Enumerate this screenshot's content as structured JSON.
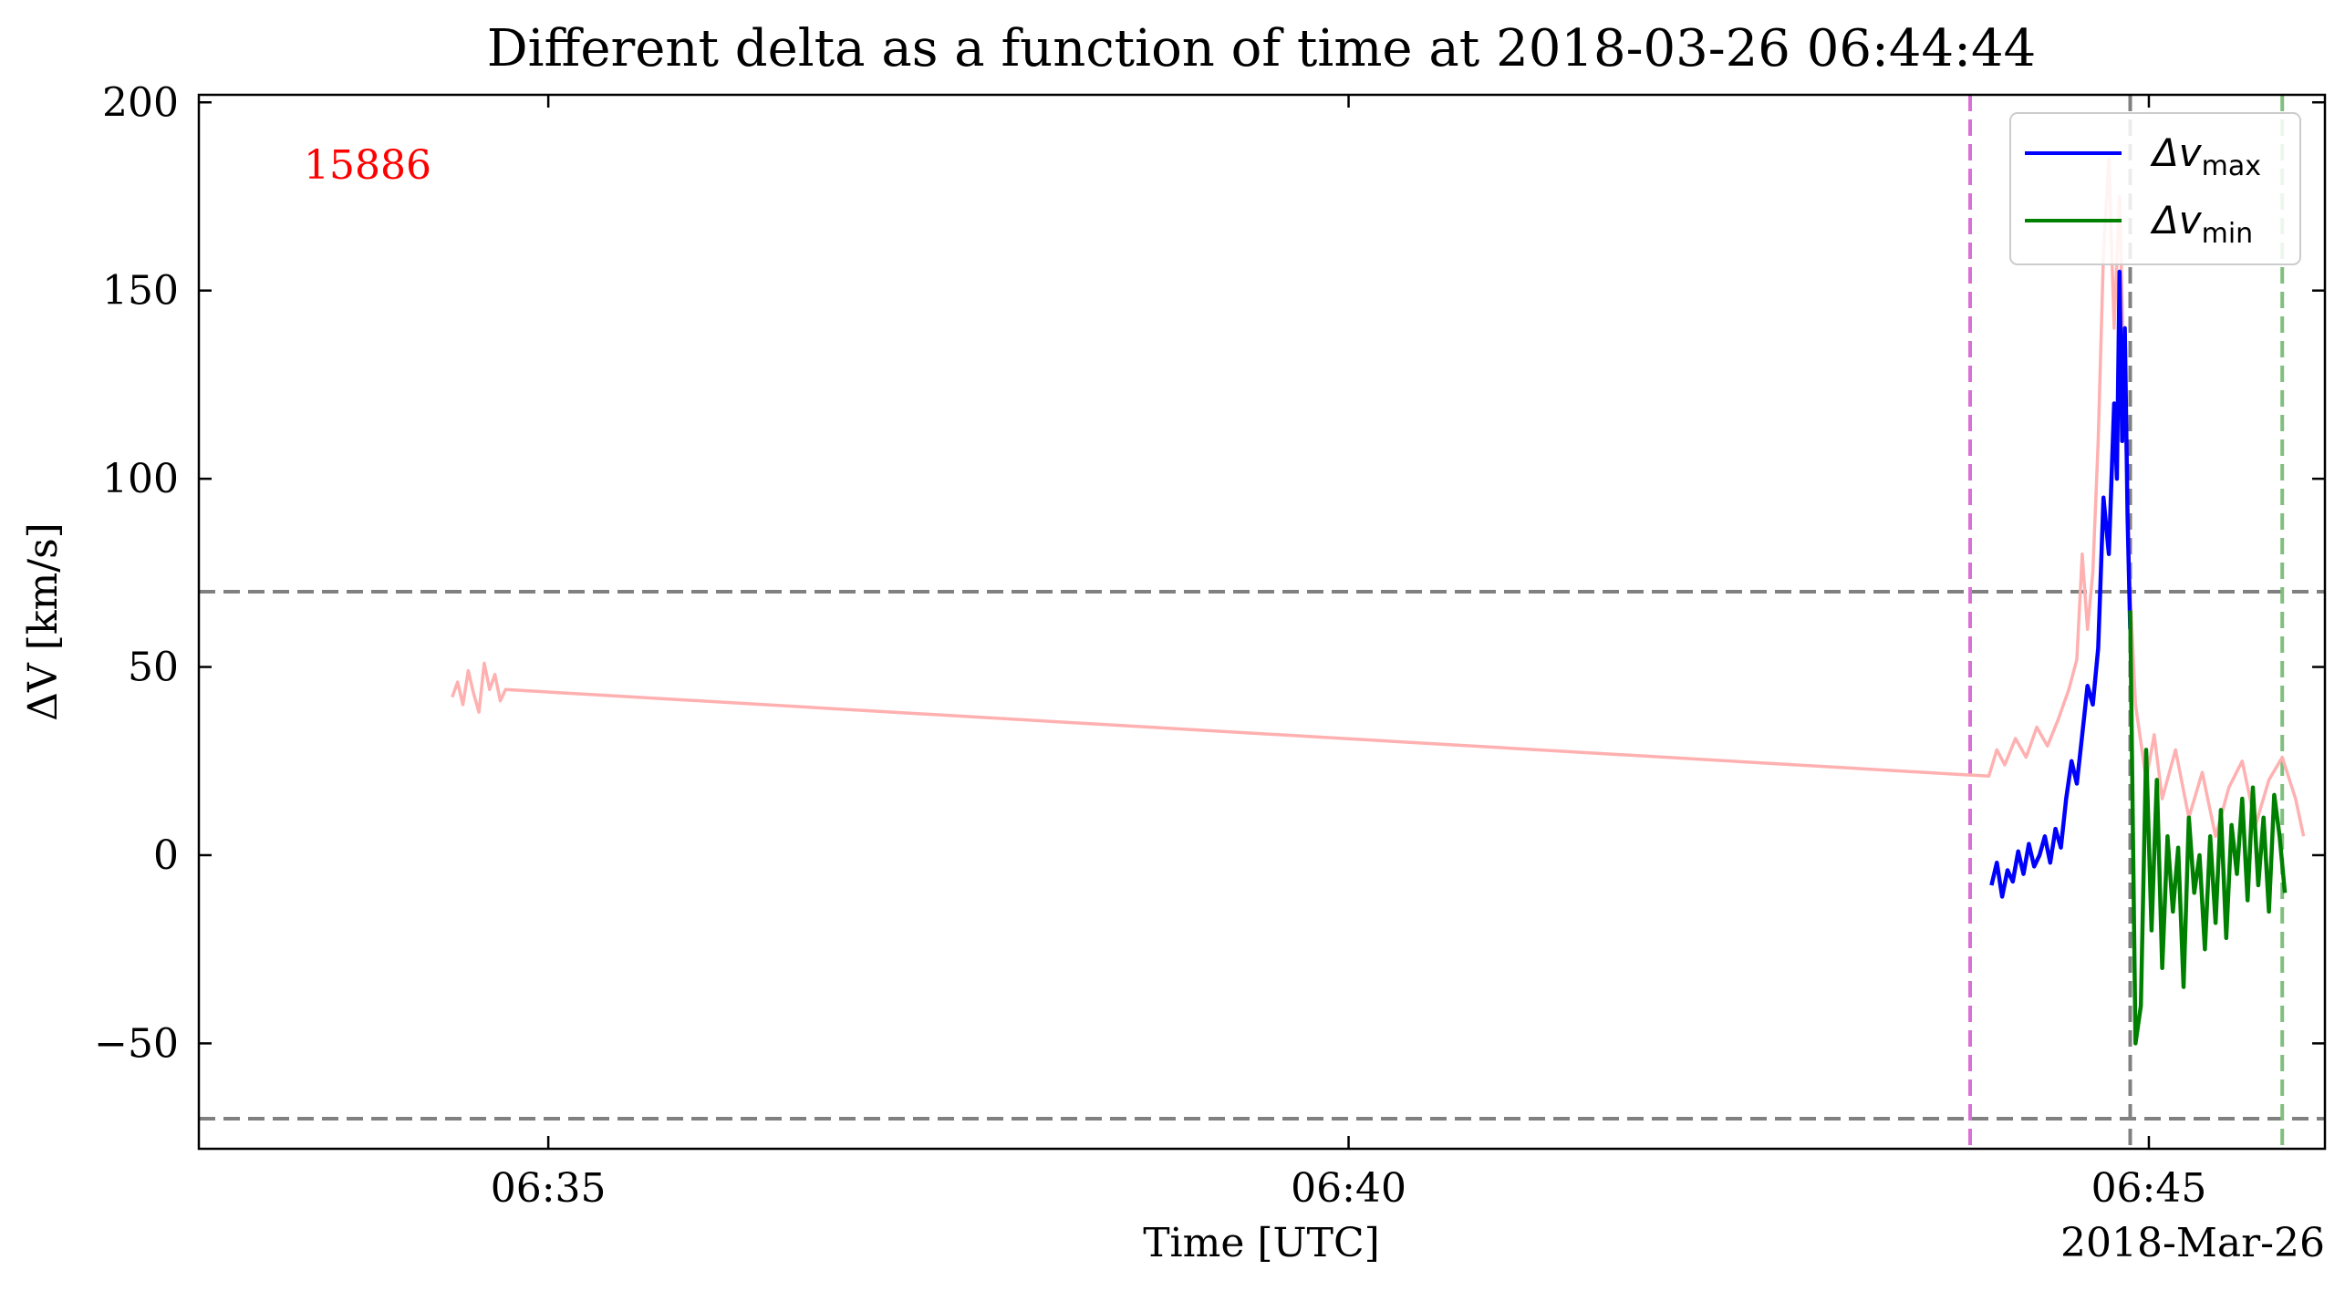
{
  "chart_data": {
    "type": "line",
    "title": "Different delta as a function of time at 2018-03-26 06:44:44",
    "xlabel": "Time [UTC]",
    "ylabel": "ΔV [km/s]",
    "x_unit": "time (HH:MM:SS UTC) on 2018-Mar-26",
    "xlim": [
      "06:32:49",
      "06:46:06"
    ],
    "ylim": [
      -78,
      202
    ],
    "x_ticks": [
      "06:35",
      "06:40",
      "06:45"
    ],
    "x_tick_offset_label": "2018-Mar-26",
    "y_ticks": [
      -50,
      0,
      50,
      100,
      150,
      200
    ],
    "y_tick_labels": [
      "−50",
      "0",
      "50",
      "100",
      "150",
      "200"
    ],
    "annotation": {
      "text": "15886",
      "color": "#ff0000"
    },
    "legend": {
      "position": "top-right",
      "entries": [
        {
          "base": "Δv",
          "sub": "max",
          "color": "#0000ff"
        },
        {
          "base": "Δv",
          "sub": "min",
          "color": "#008000"
        }
      ]
    },
    "hlines": [
      {
        "y": 70,
        "color": "#808080",
        "style": "dashed"
      },
      {
        "y": -70,
        "color": "#808080",
        "style": "dashed"
      }
    ],
    "vlines": [
      {
        "x": "06:43:53",
        "color": "#da70d6",
        "style": "dashed"
      },
      {
        "x": "06:44:53",
        "color": "#808080",
        "style": "dashed"
      },
      {
        "x": "06:45:50",
        "color": "#7fbf7f",
        "style": "dashed"
      }
    ],
    "series": [
      {
        "color": "#ffb0b0",
        "x": [
          "06:34:24",
          "06:34:26",
          "06:34:28",
          "06:34:30",
          "06:34:32",
          "06:34:34",
          "06:34:36",
          "06:34:38",
          "06:34:40",
          "06:34:42",
          "06:34:44",
          "06:44:00",
          "06:44:03",
          "06:44:06",
          "06:44:10",
          "06:44:14",
          "06:44:18",
          "06:44:22",
          "06:44:26",
          "06:44:30",
          "06:44:33",
          "06:44:35",
          "06:44:37",
          "06:44:39",
          "06:44:41",
          "06:44:43",
          "06:44:45",
          "06:44:47",
          "06:44:49",
          "06:44:51",
          "06:44:53",
          "06:44:55",
          "06:44:57",
          "06:44:59",
          "06:45:02",
          "06:45:05",
          "06:45:10",
          "06:45:15",
          "06:45:20",
          "06:45:25",
          "06:45:30",
          "06:45:35",
          "06:45:40",
          "06:45:45",
          "06:45:50",
          "06:45:55",
          "06:45:58"
        ],
        "y": [
          42,
          46,
          40,
          49,
          43,
          38,
          51,
          44,
          48,
          41,
          44,
          21,
          28,
          24,
          31,
          26,
          34,
          29,
          36,
          44,
          52,
          80,
          60,
          75,
          110,
          160,
          185,
          140,
          175,
          120,
          70,
          40,
          30,
          20,
          32,
          15,
          28,
          10,
          22,
          5,
          18,
          25,
          8,
          20,
          26,
          15,
          5
        ]
      },
      {
        "color": "#0000ff",
        "x": [
          "06:44:01",
          "06:44:03",
          "06:44:05",
          "06:44:07",
          "06:44:09",
          "06:44:11",
          "06:44:13",
          "06:44:15",
          "06:44:17",
          "06:44:19",
          "06:44:21",
          "06:44:23",
          "06:44:25",
          "06:44:27",
          "06:44:29",
          "06:44:31",
          "06:44:33",
          "06:44:35",
          "06:44:37",
          "06:44:39",
          "06:44:41",
          "06:44:43",
          "06:44:45",
          "06:44:47",
          "06:44:48",
          "06:44:49",
          "06:44:50",
          "06:44:51",
          "06:44:52",
          "06:44:53"
        ],
        "y": [
          -8,
          -2,
          -11,
          -4,
          -7,
          1,
          -5,
          3,
          -3,
          0,
          5,
          -2,
          7,
          2,
          15,
          25,
          19,
          32,
          45,
          40,
          55,
          95,
          80,
          120,
          100,
          155,
          110,
          140,
          90,
          60
        ]
      },
      {
        "color": "#008000",
        "x": [
          "06:44:53",
          "06:44:55",
          "06:44:57",
          "06:44:59",
          "06:45:01",
          "06:45:03",
          "06:45:05",
          "06:45:07",
          "06:45:09",
          "06:45:11",
          "06:45:13",
          "06:45:15",
          "06:45:17",
          "06:45:19",
          "06:45:21",
          "06:45:23",
          "06:45:25",
          "06:45:27",
          "06:45:29",
          "06:45:31",
          "06:45:33",
          "06:45:35",
          "06:45:37",
          "06:45:39",
          "06:45:41",
          "06:45:43",
          "06:45:45",
          "06:45:47",
          "06:45:49",
          "06:45:51"
        ],
        "y": [
          65,
          -50,
          -40,
          28,
          -20,
          20,
          -30,
          5,
          -15,
          2,
          -35,
          10,
          -10,
          0,
          -25,
          5,
          -18,
          12,
          -22,
          8,
          -5,
          15,
          -12,
          18,
          -8,
          10,
          -15,
          16,
          5,
          -10
        ]
      }
    ]
  }
}
